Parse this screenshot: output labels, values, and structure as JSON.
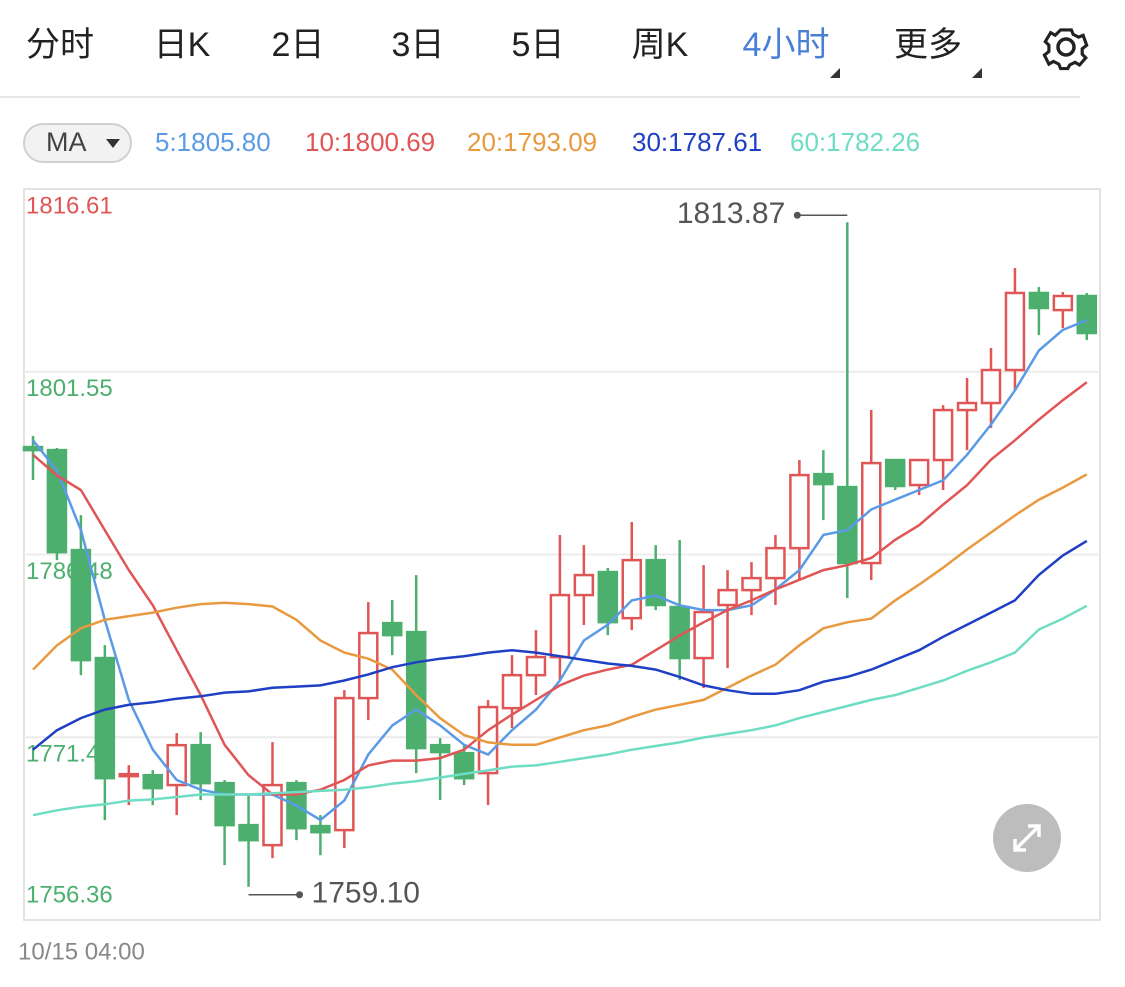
{
  "ui": {
    "tabs": [
      "分时",
      "日K",
      "2日",
      "3日",
      "5日",
      "周K",
      "4小时",
      "更多"
    ],
    "active_tab": 6,
    "active_color": "#4a7fd6",
    "tab_color": "#222222"
  },
  "chart_data": {
    "type": "candlestick",
    "indicator": "MA",
    "categories": [
      "10/15 04:00",
      null,
      null,
      null,
      null,
      null,
      null,
      null,
      null,
      null,
      null,
      null,
      null,
      null,
      null,
      null,
      null,
      null,
      null,
      null,
      null,
      null,
      null,
      null,
      null,
      null,
      null,
      null,
      null,
      null,
      null,
      null,
      null,
      null,
      null,
      null,
      null,
      null,
      null,
      null,
      null,
      null,
      null,
      null,
      null
    ],
    "open": [
      1795.34,
      1795.09,
      1786.85,
      1777.95,
      1768.22,
      1768.3,
      1767.48,
      1770.77,
      1767.64,
      1764.18,
      1762.53,
      1767.64,
      1764.1,
      1763.77,
      1774.65,
      1780.83,
      1780.09,
      1770.77,
      1770.11,
      1768.47,
      1773.82,
      1776.54,
      1778.03,
      1783.14,
      1785.04,
      1781.24,
      1786.02,
      1782.15,
      1777.95,
      1782.32,
      1783.55,
      1784.54,
      1787.01,
      1793.11,
      1792.04,
      1785.78,
      1794.27,
      1792.21,
      1794.27,
      1798.39,
      1798.97,
      1801.69,
      1808.04,
      1806.63,
      1807.79
    ],
    "high": [
      1796.25,
      1795.26,
      1789.73,
      1779.02,
      1769.12,
      1768.71,
      1771.76,
      1771.85,
      1767.89,
      1766.65,
      1771.02,
      1767.89,
      1765.0,
      1775.31,
      1782.56,
      1782.73,
      1784.79,
      1771.35,
      1770.77,
      1774.48,
      1778.19,
      1780.25,
      1788.09,
      1787.26,
      1785.37,
      1789.16,
      1787.26,
      1787.67,
      1785.61,
      1785.2,
      1785.86,
      1788.09,
      1794.27,
      1795.09,
      1813.87,
      1798.39,
      1794.27,
      1794.27,
      1798.8,
      1801.03,
      1803.5,
      1810.1,
      1808.53,
      1808.12,
      1808.04
    ],
    "low": [
      1792.62,
      1786.02,
      1776.54,
      1764.59,
      1765.83,
      1765.83,
      1765.0,
      1766.24,
      1760.88,
      1759.1,
      1761.46,
      1762.94,
      1761.7,
      1762.28,
      1772.83,
      1778.19,
      1768.47,
      1766.24,
      1767.48,
      1765.83,
      1772.18,
      1774.9,
      1776.13,
      1780.67,
      1779.84,
      1780.25,
      1781.9,
      1776.13,
      1775.47,
      1777.12,
      1781.49,
      1782.32,
      1784.38,
      1789.32,
      1782.89,
      1784.38,
      1791.8,
      1791.38,
      1791.8,
      1795.09,
      1796.91,
      1800.04,
      1804.57,
      1805.15,
      1804.16
    ],
    "close": [
      1795.09,
      1786.68,
      1777.78,
      1768.05,
      1768.38,
      1767.23,
      1770.77,
      1767.64,
      1764.18,
      1762.94,
      1767.48,
      1763.93,
      1763.6,
      1774.65,
      1780.01,
      1779.84,
      1770.53,
      1770.2,
      1768.05,
      1773.91,
      1776.54,
      1778.03,
      1783.14,
      1784.79,
      1780.91,
      1786.02,
      1782.32,
      1777.95,
      1781.74,
      1783.55,
      1784.54,
      1787.01,
      1793.03,
      1792.29,
      1785.78,
      1794.02,
      1792.13,
      1794.27,
      1798.39,
      1798.97,
      1801.69,
      1808.04,
      1806.8,
      1807.79,
      1804.74
    ],
    "up_color": "#e05555",
    "down_color": "#4caf6e",
    "series": [
      {
        "name": "5:1805.80",
        "color": "#5b9be6",
        "values": [
          1795.9,
          1793.4,
          1788.5,
          1781.1,
          1774.5,
          1770.4,
          1767.9,
          1767.1,
          1766.7,
          1766.7,
          1766.7,
          1765.8,
          1764.6,
          1766.2,
          1770.0,
          1772.4,
          1773.7,
          1772.4,
          1770.8,
          1770.0,
          1772.0,
          1773.7,
          1776.1,
          1779.4,
          1780.7,
          1782.7,
          1783.1,
          1782.3,
          1781.9,
          1781.9,
          1782.3,
          1783.6,
          1785.2,
          1788.1,
          1788.5,
          1790.2,
          1791.0,
          1791.8,
          1792.6,
          1794.7,
          1797.2,
          1800.0,
          1803.3,
          1805.0,
          1805.8
        ]
      },
      {
        "name": "10:1800.69",
        "color": "#e05555",
        "values": [
          1794.7,
          1793.0,
          1791.8,
          1788.5,
          1785.2,
          1782.3,
          1778.6,
          1774.9,
          1770.8,
          1768.3,
          1766.7,
          1766.7,
          1767.1,
          1767.9,
          1769.1,
          1769.5,
          1769.5,
          1769.7,
          1770.4,
          1772.0,
          1773.3,
          1774.5,
          1775.7,
          1776.5,
          1777.0,
          1777.4,
          1778.6,
          1779.8,
          1780.9,
          1781.9,
          1782.7,
          1783.6,
          1784.4,
          1785.2,
          1785.6,
          1786.2,
          1787.7,
          1788.9,
          1790.6,
          1792.2,
          1794.3,
          1795.9,
          1797.6,
          1799.2,
          1800.69
        ]
      },
      {
        "name": "20:1793.09",
        "color": "#e9993f",
        "values": [
          1777.0,
          1779.0,
          1780.4,
          1781.1,
          1781.4,
          1781.7,
          1782.1,
          1782.4,
          1782.5,
          1782.4,
          1782.2,
          1781.1,
          1779.4,
          1778.4,
          1777.9,
          1777.0,
          1774.9,
          1773.0,
          1771.6,
          1771.0,
          1770.8,
          1770.8,
          1771.4,
          1772.0,
          1772.4,
          1773.1,
          1773.7,
          1774.1,
          1774.5,
          1775.5,
          1776.5,
          1777.4,
          1779.0,
          1780.4,
          1780.9,
          1781.2,
          1782.7,
          1784.0,
          1785.4,
          1786.9,
          1788.3,
          1789.7,
          1791.0,
          1792.0,
          1793.09
        ]
      },
      {
        "name": "30:1787.61",
        "color": "#1f3fc4",
        "values": [
          1770.4,
          1772.0,
          1773.0,
          1773.7,
          1774.1,
          1774.3,
          1774.6,
          1774.8,
          1775.1,
          1775.2,
          1775.5,
          1775.6,
          1775.7,
          1776.1,
          1776.6,
          1777.2,
          1777.6,
          1777.9,
          1778.1,
          1778.4,
          1778.6,
          1778.4,
          1778.1,
          1777.8,
          1777.5,
          1777.3,
          1777.0,
          1776.4,
          1775.7,
          1775.3,
          1775.0,
          1775.0,
          1775.3,
          1776.0,
          1776.4,
          1777.0,
          1777.8,
          1778.6,
          1779.7,
          1780.7,
          1781.7,
          1782.7,
          1784.8,
          1786.4,
          1787.61
        ]
      },
      {
        "name": "60:1782.26",
        "color": "#6fdcc4",
        "values": [
          1765.0,
          1765.4,
          1765.7,
          1765.9,
          1766.2,
          1766.3,
          1766.5,
          1766.7,
          1766.7,
          1766.7,
          1766.8,
          1766.9,
          1767.0,
          1767.1,
          1767.3,
          1767.6,
          1767.8,
          1768.1,
          1768.4,
          1768.7,
          1769.0,
          1769.1,
          1769.4,
          1769.7,
          1770.0,
          1770.4,
          1770.7,
          1771.0,
          1771.4,
          1771.7,
          1772.0,
          1772.4,
          1773.0,
          1773.5,
          1774.0,
          1774.5,
          1774.9,
          1775.5,
          1776.1,
          1776.9,
          1777.6,
          1778.4,
          1780.3,
          1781.2,
          1782.26
        ]
      }
    ],
    "ylim": [
      1756.36,
      1816.61
    ],
    "yticks": [
      1756.36,
      1771.42,
      1786.48,
      1801.55,
      1816.61
    ],
    "ytick_colors": [
      "#4caf6e",
      "#4caf6e",
      "#4caf6e",
      "#4caf6e",
      "#e05555"
    ],
    "high_label": "1813.87",
    "low_label": "1759.10",
    "grid": true
  }
}
